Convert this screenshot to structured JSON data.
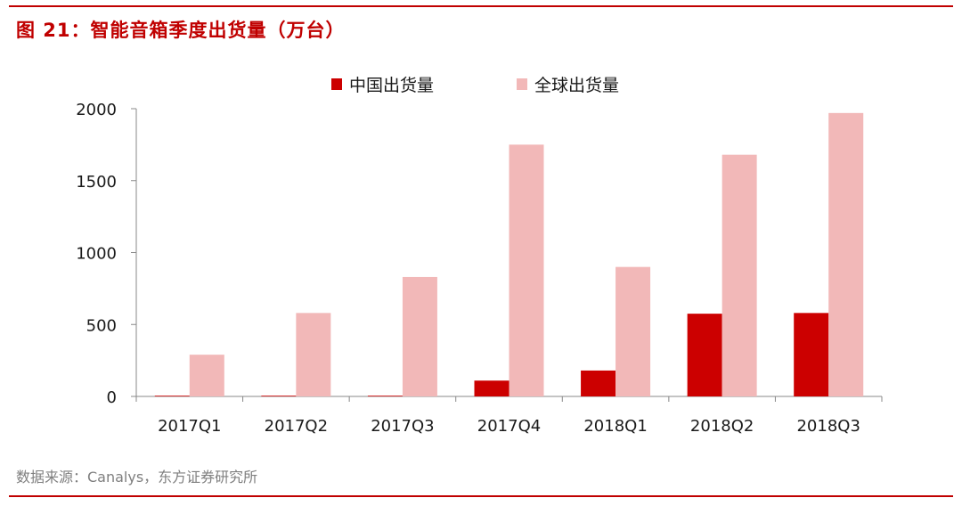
{
  "figure": {
    "title": "图 21：智能音箱季度出货量（万台）",
    "source": "数据来源：Canalys，东方证券研究所"
  },
  "colors": {
    "accent": "#c00000",
    "series_china": "#cc0000",
    "series_global": "#f2b8b8",
    "axis": "#888888"
  },
  "chart_data": {
    "type": "bar",
    "categories": [
      "2017Q1",
      "2017Q2",
      "2017Q3",
      "2017Q4",
      "2018Q1",
      "2018Q2",
      "2018Q3"
    ],
    "series": [
      {
        "name": "中国出货量",
        "values": [
          5,
          5,
          5,
          110,
          180,
          575,
          580
        ],
        "color": "#cc0000"
      },
      {
        "name": "全球出货量",
        "values": [
          290,
          580,
          830,
          1750,
          900,
          1680,
          1970
        ],
        "color": "#f2b8b8"
      }
    ],
    "title": "",
    "xlabel": "",
    "ylabel": "",
    "ylim": [
      0,
      2000
    ],
    "yticks": [
      0,
      500,
      1000,
      1500,
      2000
    ],
    "grid": false,
    "legend_position": "top"
  }
}
